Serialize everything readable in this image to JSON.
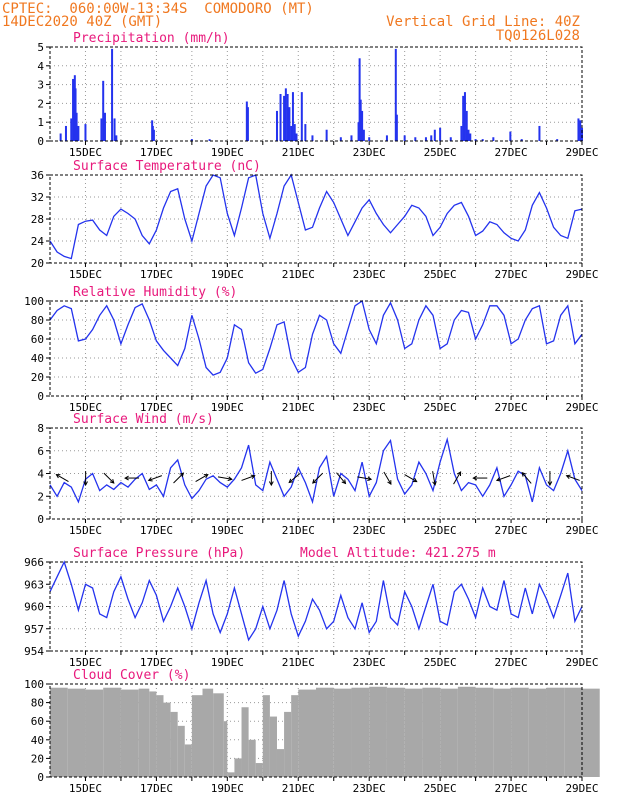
{
  "header": {
    "line1_left": "CPTEC:  060:00W-13:34S  COMODORO (MT)",
    "line2_left": "14DEC2020 40Z (GMT)",
    "line1_right": "Vertical Grid Line: 40Z",
    "line2_right": "TQ0126L028"
  },
  "colors": {
    "header": "#f07820",
    "title": "#e8197c",
    "series": "#2433ee",
    "cloud": "#a8a8a8",
    "grid": "#9a9a9a"
  },
  "x_axis": {
    "tick_labels": [
      "15DEC",
      "17DEC",
      "19DEC",
      "21DEC",
      "23DEC",
      "25DEC",
      "27DEC",
      "29DEC"
    ],
    "range_days": [
      14.0,
      29.0
    ]
  },
  "extra_label": "Model Altitude: 421.275 m",
  "chart_data": [
    {
      "type": "bar",
      "title": "Precipitation (mm/h)",
      "ylim": [
        0,
        5
      ],
      "yticks": [
        "0",
        "1",
        "2",
        "3",
        "4",
        "5"
      ],
      "x": [
        14.3,
        14.45,
        14.6,
        14.65,
        14.7,
        14.72,
        14.75,
        14.8,
        15.0,
        15.45,
        15.5,
        15.55,
        15.75,
        15.82,
        15.87,
        16.88,
        16.9,
        16.93,
        18.0,
        18.5,
        19.55,
        19.58,
        20.4,
        20.5,
        20.6,
        20.62,
        20.65,
        20.7,
        20.75,
        20.8,
        20.85,
        20.9,
        20.95,
        21.1,
        21.2,
        21.4,
        21.8,
        22.2,
        22.5,
        22.7,
        22.73,
        22.76,
        22.8,
        22.85,
        23.0,
        23.5,
        23.75,
        23.78,
        24.0,
        24.3,
        24.6,
        24.75,
        24.85,
        25.0,
        25.3,
        25.6,
        25.65,
        25.7,
        25.75,
        25.8,
        25.85,
        26.0,
        26.2,
        26.5,
        26.98,
        27.3,
        27.8,
        28.3,
        28.9,
        28.95,
        29.0
      ],
      "values": [
        0.4,
        0.8,
        1.2,
        3.3,
        3.5,
        2.8,
        1.5,
        0.8,
        0.9,
        1.2,
        3.2,
        1.5,
        4.9,
        1.2,
        0.3,
        1.1,
        0.8,
        0.6,
        0.1,
        0.1,
        2.1,
        1.8,
        1.6,
        2.5,
        2.4,
        1.2,
        2.8,
        2.5,
        1.8,
        0.8,
        2.6,
        0.9,
        0.4,
        2.6,
        0.9,
        0.3,
        0.6,
        0.2,
        0.3,
        1.0,
        4.4,
        2.2,
        1.6,
        0.6,
        0.2,
        0.3,
        4.9,
        1.4,
        0.3,
        0.2,
        0.2,
        0.3,
        0.6,
        0.7,
        0.2,
        0.8,
        2.4,
        2.6,
        1.6,
        0.6,
        0.4,
        0.1,
        0.1,
        0.2,
        0.5,
        0.1,
        0.8,
        0.1,
        1.2,
        1.1,
        0.7
      ]
    },
    {
      "type": "line",
      "title": "Surface Temperature (nC)",
      "ylim": [
        20,
        36
      ],
      "yticks": [
        "20",
        "24",
        "28",
        "32",
        "36"
      ],
      "x": [
        14.0,
        14.2,
        14.4,
        14.6,
        14.8,
        15.0,
        15.2,
        15.4,
        15.6,
        15.8,
        16.0,
        16.2,
        16.4,
        16.6,
        16.8,
        17.0,
        17.2,
        17.4,
        17.6,
        17.8,
        18.0,
        18.2,
        18.4,
        18.6,
        18.8,
        19.0,
        19.2,
        19.4,
        19.6,
        19.8,
        20.0,
        20.2,
        20.4,
        20.6,
        20.8,
        21.0,
        21.2,
        21.4,
        21.6,
        21.8,
        22.0,
        22.2,
        22.4,
        22.6,
        22.8,
        23.0,
        23.2,
        23.4,
        23.6,
        23.8,
        24.0,
        24.2,
        24.4,
        24.6,
        24.8,
        25.0,
        25.2,
        25.4,
        25.6,
        25.8,
        26.0,
        26.2,
        26.4,
        26.6,
        26.8,
        27.0,
        27.2,
        27.4,
        27.6,
        27.8,
        28.0,
        28.2,
        28.4,
        28.6,
        28.8,
        29.0
      ],
      "values": [
        24.0,
        22.0,
        21.2,
        20.8,
        27.0,
        27.6,
        27.8,
        26.0,
        25.0,
        28.5,
        29.8,
        29.0,
        28.0,
        25.0,
        23.5,
        26.0,
        30.0,
        33.0,
        33.5,
        28.0,
        24.0,
        29.0,
        34.0,
        36.0,
        35.5,
        29.0,
        25.0,
        30.0,
        35.5,
        36.0,
        29.0,
        24.5,
        29.0,
        34.0,
        36.0,
        31.0,
        26.0,
        26.5,
        30.0,
        33.0,
        31.0,
        28.0,
        25.0,
        27.5,
        30.0,
        31.5,
        29.0,
        27.0,
        25.5,
        27.0,
        28.5,
        30.5,
        30.0,
        28.5,
        25.0,
        26.5,
        29.0,
        30.5,
        31.0,
        28.5,
        25.0,
        25.8,
        27.5,
        27.0,
        25.5,
        24.5,
        24.0,
        26.0,
        30.5,
        32.8,
        30.0,
        26.5,
        25.0,
        24.5,
        29.5,
        29.8
      ]
    },
    {
      "type": "line",
      "title": "Relative Humidity (%)",
      "ylim": [
        0,
        100
      ],
      "yticks": [
        "0",
        "20",
        "40",
        "60",
        "80",
        "100"
      ],
      "x": [
        14.0,
        14.2,
        14.4,
        14.6,
        14.8,
        15.0,
        15.2,
        15.4,
        15.6,
        15.8,
        16.0,
        16.2,
        16.4,
        16.6,
        16.8,
        17.0,
        17.2,
        17.4,
        17.6,
        17.8,
        18.0,
        18.2,
        18.4,
        18.6,
        18.8,
        19.0,
        19.2,
        19.4,
        19.6,
        19.8,
        20.0,
        20.2,
        20.4,
        20.6,
        20.8,
        21.0,
        21.2,
        21.4,
        21.6,
        21.8,
        22.0,
        22.2,
        22.4,
        22.6,
        22.8,
        23.0,
        23.2,
        23.4,
        23.6,
        23.8,
        24.0,
        24.2,
        24.4,
        24.6,
        24.8,
        25.0,
        25.2,
        25.4,
        25.6,
        25.8,
        26.0,
        26.2,
        26.4,
        26.6,
        26.8,
        27.0,
        27.2,
        27.4,
        27.6,
        27.8,
        28.0,
        28.2,
        28.4,
        28.6,
        28.8,
        29.0
      ],
      "values": [
        80,
        90,
        95,
        92,
        58,
        60,
        70,
        85,
        95,
        80,
        55,
        75,
        93,
        97,
        80,
        58,
        48,
        40,
        32,
        50,
        85,
        60,
        30,
        22,
        25,
        40,
        75,
        70,
        35,
        24,
        28,
        50,
        75,
        78,
        40,
        25,
        30,
        65,
        85,
        80,
        55,
        45,
        70,
        95,
        100,
        70,
        55,
        85,
        98,
        80,
        50,
        55,
        80,
        95,
        85,
        50,
        55,
        80,
        90,
        88,
        60,
        75,
        95,
        95,
        85,
        55,
        60,
        80,
        92,
        95,
        55,
        58,
        85,
        95,
        55,
        65
      ]
    },
    {
      "type": "line",
      "title": "Surface Wind (m/s)",
      "ylim": [
        0,
        8
      ],
      "yticks": [
        "0",
        "2",
        "4",
        "6",
        "8"
      ],
      "x": [
        14.0,
        14.2,
        14.4,
        14.6,
        14.8,
        15.0,
        15.2,
        15.4,
        15.6,
        15.8,
        16.0,
        16.2,
        16.4,
        16.6,
        16.8,
        17.0,
        17.2,
        17.4,
        17.6,
        17.8,
        18.0,
        18.2,
        18.4,
        18.6,
        18.8,
        19.0,
        19.2,
        19.4,
        19.6,
        19.8,
        20.0,
        20.2,
        20.4,
        20.6,
        20.8,
        21.0,
        21.2,
        21.4,
        21.6,
        21.8,
        22.0,
        22.2,
        22.4,
        22.6,
        22.8,
        23.0,
        23.2,
        23.4,
        23.6,
        23.8,
        24.0,
        24.2,
        24.4,
        24.6,
        24.8,
        25.0,
        25.2,
        25.4,
        25.6,
        25.8,
        26.0,
        26.2,
        26.4,
        26.6,
        26.8,
        27.0,
        27.2,
        27.4,
        27.6,
        27.8,
        28.0,
        28.2,
        28.4,
        28.6,
        28.8,
        29.0
      ],
      "values": [
        3.0,
        2.0,
        3.2,
        2.8,
        1.5,
        3.5,
        4.0,
        2.5,
        3.0,
        2.6,
        3.2,
        2.8,
        3.5,
        4.0,
        2.6,
        3.0,
        2.0,
        4.5,
        5.2,
        3.0,
        1.8,
        2.5,
        3.5,
        3.8,
        3.2,
        2.8,
        3.5,
        4.5,
        6.5,
        3.0,
        2.5,
        5.0,
        3.5,
        2.0,
        2.8,
        4.5,
        3.2,
        1.5,
        4.5,
        5.5,
        2.0,
        4.0,
        3.5,
        2.5,
        5.0,
        2.0,
        3.2,
        6.0,
        6.9,
        3.5,
        2.2,
        3.0,
        5.0,
        4.0,
        2.5,
        5.0,
        7.0,
        4.0,
        2.5,
        3.2,
        3.0,
        2.0,
        3.0,
        4.5,
        2.0,
        3.0,
        4.2,
        3.8,
        1.5,
        4.5,
        3.0,
        2.5,
        4.0,
        6.0,
        3.5,
        2.5
      ],
      "arrows_dir_deg": [
        150,
        270,
        315,
        180,
        200,
        45,
        30,
        350,
        20,
        270,
        220,
        225,
        310,
        350,
        300,
        330,
        280,
        60,
        180,
        200,
        130,
        270,
        160
      ]
    },
    {
      "type": "line",
      "title": "Surface Pressure (hPa)",
      "ylim": [
        954,
        966
      ],
      "yticks": [
        "954",
        "957",
        "960",
        "963",
        "966"
      ],
      "x": [
        14.0,
        14.2,
        14.4,
        14.6,
        14.8,
        15.0,
        15.2,
        15.4,
        15.6,
        15.8,
        16.0,
        16.2,
        16.4,
        16.6,
        16.8,
        17.0,
        17.2,
        17.4,
        17.6,
        17.8,
        18.0,
        18.2,
        18.4,
        18.6,
        18.8,
        19.0,
        19.2,
        19.4,
        19.6,
        19.8,
        20.0,
        20.2,
        20.4,
        20.6,
        20.8,
        21.0,
        21.2,
        21.4,
        21.6,
        21.8,
        22.0,
        22.2,
        22.4,
        22.6,
        22.8,
        23.0,
        23.2,
        23.4,
        23.6,
        23.8,
        24.0,
        24.2,
        24.4,
        24.6,
        24.8,
        25.0,
        25.2,
        25.4,
        25.6,
        25.8,
        26.0,
        26.2,
        26.4,
        26.6,
        26.8,
        27.0,
        27.2,
        27.4,
        27.6,
        27.8,
        28.0,
        28.2,
        28.4,
        28.6,
        28.8,
        29.0
      ],
      "values": [
        962.0,
        964.0,
        966.0,
        963.0,
        959.5,
        963.0,
        962.5,
        959.0,
        958.5,
        962.0,
        964.0,
        961.0,
        958.5,
        960.5,
        963.5,
        961.5,
        958.0,
        960.0,
        962.5,
        960.0,
        957.0,
        960.5,
        963.5,
        959.0,
        956.5,
        959.0,
        962.5,
        959.0,
        955.5,
        957.0,
        960.0,
        957.0,
        959.5,
        963.5,
        959.0,
        956.0,
        958.0,
        961.0,
        959.5,
        957.0,
        958.0,
        961.5,
        958.5,
        957.0,
        960.5,
        956.5,
        958.0,
        963.5,
        958.5,
        957.5,
        962.0,
        960.0,
        957.0,
        960.0,
        963.0,
        958.0,
        957.5,
        962.0,
        963.0,
        961.0,
        958.5,
        962.5,
        960.0,
        959.5,
        963.5,
        959.0,
        958.5,
        962.5,
        959.0,
        963.0,
        961.0,
        958.5,
        961.5,
        964.5,
        958.0,
        960.0
      ]
    },
    {
      "type": "area",
      "title": "Cloud Cover (%)",
      "ylim": [
        0,
        100
      ],
      "yticks": [
        "0",
        "20",
        "40",
        "60",
        "80",
        "100"
      ],
      "x": [
        14.0,
        14.5,
        15.0,
        15.5,
        16.0,
        16.5,
        16.8,
        17.0,
        17.2,
        17.4,
        17.6,
        17.8,
        18.0,
        18.3,
        18.6,
        18.9,
        19.0,
        19.2,
        19.4,
        19.6,
        19.8,
        20.0,
        20.2,
        20.4,
        20.6,
        20.8,
        21.0,
        21.5,
        22.0,
        22.5,
        23.0,
        23.5,
        24.0,
        24.5,
        25.0,
        25.5,
        26.0,
        26.5,
        27.0,
        27.5,
        28.0,
        28.5,
        29.0
      ],
      "values": [
        96,
        95,
        94,
        96,
        94,
        95,
        92,
        88,
        80,
        70,
        55,
        35,
        88,
        95,
        90,
        60,
        5,
        20,
        75,
        40,
        15,
        88,
        65,
        30,
        70,
        88,
        94,
        96,
        95,
        96,
        97,
        96,
        95,
        96,
        95,
        97,
        96,
        95,
        96,
        95,
        96,
        96,
        95
      ]
    }
  ]
}
